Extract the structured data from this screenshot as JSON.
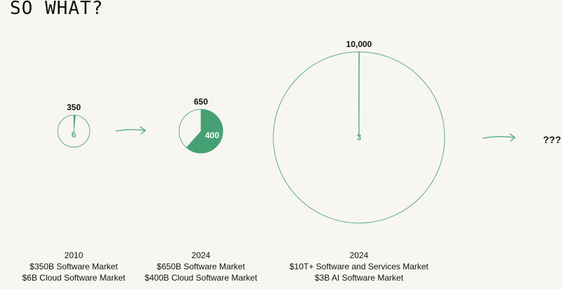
{
  "title": "SO WHAT?",
  "colors": {
    "background": "#f8f6f1",
    "circle_fill": "#f8f6f1",
    "circle_stroke": "#5aad85",
    "segment_fill": "#46a074",
    "text": "#111111"
  },
  "chart_data": [
    {
      "type": "pie",
      "total": 350,
      "total_label": "350",
      "segment_value": 6,
      "segment_label": "6",
      "caption": [
        "2010",
        "$350B Software Market",
        "$6B Cloud Software Market"
      ]
    },
    {
      "type": "pie",
      "total": 650,
      "total_label": "650",
      "segment_value": 400,
      "segment_label": "400",
      "caption": [
        "2024",
        "$650B Software Market",
        "$400B Cloud Software Market"
      ]
    },
    {
      "type": "pie",
      "total": 10000,
      "total_label": "10,000",
      "segment_value": 3,
      "segment_label": "3",
      "caption": [
        "2024",
        "$10T+ Software and Services Market",
        "$3B AI Software Market"
      ]
    }
  ],
  "next_label": "???"
}
